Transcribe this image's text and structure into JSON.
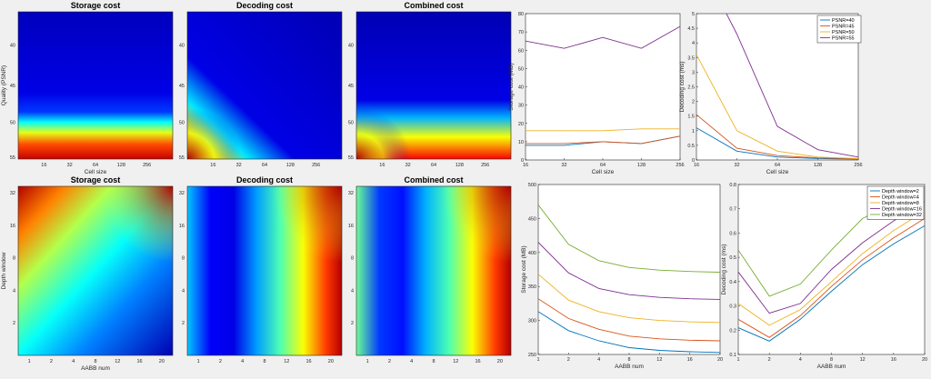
{
  "colors": {
    "figure_bg": "#f0f0f0",
    "axes_bg": "#ffffff",
    "series": [
      "#0072bd",
      "#d95319",
      "#edb120",
      "#7e2f8e",
      "#77ac30"
    ]
  },
  "chart_data": [
    {
      "type": "heatmap",
      "title": "Storage cost",
      "xlabel": "Cell size",
      "ylabel": "Quality (PSNR)",
      "x_ticks": [
        "16",
        "32",
        "64",
        "128",
        "256"
      ],
      "y_ticks": [
        "40",
        "45",
        "50",
        "55"
      ],
      "colormap": "jet",
      "description_values": "low everywhere except high at PSNR around 55, band along bottom"
    },
    {
      "type": "heatmap",
      "title": "Decoding cost",
      "xlabel": "",
      "ylabel": "",
      "x_ticks": [
        "16",
        "32",
        "64",
        "128",
        "256"
      ],
      "y_ticks": [
        "40",
        "45",
        "50",
        "55"
      ],
      "colormap": "jet"
    },
    {
      "type": "heatmap",
      "title": "Combined cost",
      "xlabel": "",
      "ylabel": "",
      "x_ticks": [
        "16",
        "32",
        "64",
        "128",
        "256"
      ],
      "y_ticks": [
        "40",
        "45",
        "50",
        "55"
      ],
      "colormap": "jet"
    },
    {
      "type": "line",
      "title": "",
      "xlabel": "Cell size",
      "ylabel": "Storage cost (MB)",
      "x": [
        "16",
        "32",
        "64",
        "128",
        "256"
      ],
      "ylim": [
        0,
        80
      ],
      "y_ticks": [
        0,
        10,
        20,
        30,
        40,
        50,
        60,
        70,
        80
      ],
      "legend": "none",
      "series": [
        {
          "name": "PSNR=40",
          "values": [
            8,
            8,
            10,
            9,
            13
          ]
        },
        {
          "name": "PSNR=45",
          "values": [
            9,
            9,
            10,
            9,
            13
          ]
        },
        {
          "name": "PSNR=50",
          "values": [
            16,
            16,
            16,
            17,
            17
          ]
        },
        {
          "name": "PSNR=55",
          "values": [
            65,
            61,
            67,
            61,
            73
          ]
        }
      ]
    },
    {
      "type": "line",
      "title": "",
      "xlabel": "Cell size",
      "ylabel": "Decoding cost (ms)",
      "x": [
        "16",
        "32",
        "64",
        "128",
        "256"
      ],
      "ylim": [
        0,
        5
      ],
      "y_ticks": [
        0,
        0.5,
        1,
        1.5,
        2,
        2.5,
        3,
        3.5,
        4,
        4.5,
        5
      ],
      "legend": "top-right",
      "series": [
        {
          "name": "PSNR=40",
          "values": [
            1.1,
            0.3,
            0.1,
            0.05,
            0.03
          ]
        },
        {
          "name": "PSNR=45",
          "values": [
            1.55,
            0.4,
            0.15,
            0.07,
            0.04
          ]
        },
        {
          "name": "PSNR=50",
          "values": [
            3.6,
            1.0,
            0.3,
            0.1,
            0.05
          ]
        },
        {
          "name": "PSNR=55",
          "values": [
            7.0,
            4.3,
            1.15,
            0.35,
            0.1
          ]
        }
      ]
    },
    {
      "type": "heatmap",
      "title": "Storage cost",
      "xlabel": "AABB num",
      "ylabel": "Depth window",
      "x_ticks": [
        "1",
        "2",
        "4",
        "8",
        "12",
        "16",
        "20"
      ],
      "y_ticks": [
        "2",
        "4",
        "8",
        "16",
        "32"
      ],
      "colormap": "jet"
    },
    {
      "type": "heatmap",
      "title": "Decoding cost",
      "xlabel": "",
      "ylabel": "",
      "x_ticks": [
        "1",
        "2",
        "4",
        "8",
        "12",
        "16",
        "20"
      ],
      "y_ticks": [
        "2",
        "4",
        "8",
        "16",
        "32"
      ],
      "colormap": "jet"
    },
    {
      "type": "heatmap",
      "title": "Combined cost",
      "xlabel": "",
      "ylabel": "",
      "x_ticks": [
        "1",
        "2",
        "4",
        "8",
        "12",
        "16",
        "20"
      ],
      "y_ticks": [
        "2",
        "4",
        "8",
        "16",
        "32"
      ],
      "colormap": "jet"
    },
    {
      "type": "line",
      "title": "",
      "xlabel": "AABB num",
      "ylabel": "Storage cost (MB)",
      "x": [
        "1",
        "2",
        "4",
        "8",
        "12",
        "16",
        "20"
      ],
      "ylim": [
        250,
        500
      ],
      "y_ticks": [
        250,
        300,
        350,
        400,
        450,
        500
      ],
      "legend": "none",
      "series": [
        {
          "name": "Depth window=2",
          "values": [
            313,
            285,
            270,
            260,
            256,
            254,
            253
          ]
        },
        {
          "name": "Depth window=4",
          "values": [
            332,
            303,
            287,
            277,
            273,
            271,
            270
          ]
        },
        {
          "name": "Depth window=8",
          "values": [
            368,
            330,
            313,
            304,
            300,
            298,
            297
          ]
        },
        {
          "name": "Depth window=16",
          "values": [
            415,
            370,
            347,
            338,
            334,
            332,
            331
          ]
        },
        {
          "name": "Depth window=32",
          "values": [
            470,
            412,
            388,
            378,
            374,
            372,
            371
          ]
        }
      ]
    },
    {
      "type": "line",
      "title": "",
      "xlabel": "AABB num",
      "ylabel": "Decoding cost (ms)",
      "x": [
        "1",
        "2",
        "4",
        "8",
        "12",
        "16",
        "20"
      ],
      "ylim": [
        0.1,
        0.8
      ],
      "y_ticks": [
        0.1,
        0.2,
        0.3,
        0.4,
        0.5,
        0.6,
        0.7,
        0.8
      ],
      "legend": "top-right",
      "series": [
        {
          "name": "Depth window=2",
          "values": [
            0.21,
            0.155,
            0.245,
            0.36,
            0.47,
            0.555,
            0.63
          ]
        },
        {
          "name": "Depth window=4",
          "values": [
            0.245,
            0.17,
            0.26,
            0.38,
            0.49,
            0.58,
            0.66
          ]
        },
        {
          "name": "Depth window=8",
          "values": [
            0.31,
            0.22,
            0.285,
            0.4,
            0.515,
            0.61,
            0.69
          ]
        },
        {
          "name": "Depth window=16",
          "values": [
            0.44,
            0.27,
            0.31,
            0.45,
            0.56,
            0.65,
            0.73
          ]
        },
        {
          "name": "Depth window=32",
          "values": [
            0.53,
            0.34,
            0.39,
            0.53,
            0.66,
            0.72,
            0.73
          ]
        }
      ]
    }
  ]
}
